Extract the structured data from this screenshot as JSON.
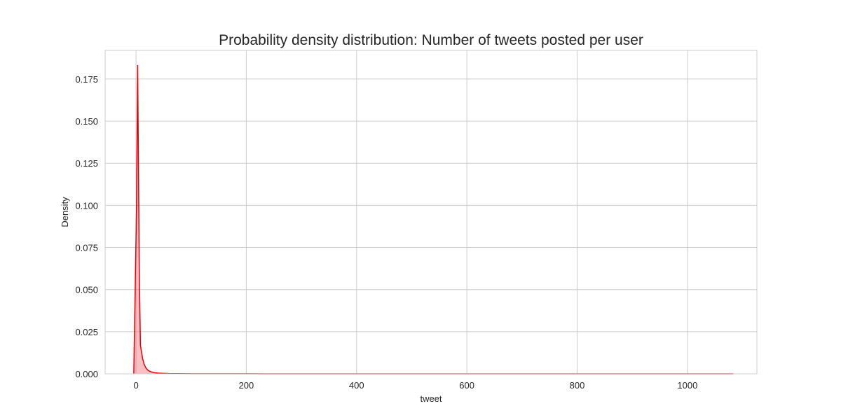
{
  "chart_data": {
    "type": "area",
    "title": "Probability density distribution: Number of tweets posted per user",
    "xlabel": "tweet",
    "ylabel": "Density",
    "xlim": [
      -56,
      1126
    ],
    "ylim": [
      0,
      0.192
    ],
    "x_ticks": [
      0,
      200,
      400,
      600,
      800,
      1000
    ],
    "x_tick_labels": [
      "0",
      "200",
      "400",
      "600",
      "800",
      "1000"
    ],
    "y_ticks": [
      0,
      0.025,
      0.05,
      0.075,
      0.1,
      0.125,
      0.15,
      0.175
    ],
    "y_tick_labels": [
      "0.000",
      "0.025",
      "0.050",
      "0.075",
      "0.100",
      "0.125",
      "0.150",
      "0.175"
    ],
    "grid": true,
    "series": [
      {
        "color": "#e8000b",
        "fill_color": "#e8000b",
        "fill_opacity": 0.25,
        "x": [
          -4,
          1,
          3,
          6,
          8,
          10,
          12,
          15,
          18,
          22,
          27,
          33,
          40,
          50,
          60,
          80,
          100,
          150,
          200,
          300,
          400,
          600,
          800,
          1000,
          1083
        ],
        "y": [
          0,
          0.1,
          0.183,
          0.06,
          0.017,
          0.013,
          0.009,
          0.0055,
          0.0035,
          0.002,
          0.0012,
          0.0007,
          0.0004,
          0.00025,
          0.00015,
          0.0001,
          7e-05,
          4e-05,
          3e-05,
          2e-05,
          1.5e-05,
          1e-05,
          8e-06,
          5e-06,
          0
        ]
      }
    ]
  }
}
